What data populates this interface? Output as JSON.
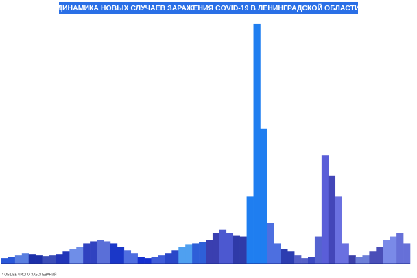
{
  "chart_data": {
    "type": "bar",
    "title": "ДИНАМИКА НОВЫХ СЛУЧАЕВ ЗАРАЖЕНИЯ COVID-19 В ЛЕНИНГРАДСКОЙ ОБЛАСТИ",
    "footnote": "* ОБЩЕЕ ЧИСЛО ЗАБОЛЕВАНИЙ",
    "ylim": [
      0,
      360
    ],
    "values": [
      8,
      10,
      12,
      15,
      14,
      12,
      11,
      12,
      14,
      18,
      22,
      25,
      30,
      33,
      35,
      33,
      30,
      25,
      20,
      15,
      10,
      8,
      10,
      12,
      15,
      20,
      25,
      28,
      30,
      32,
      35,
      45,
      50,
      45,
      42,
      40,
      100,
      355,
      200,
      60,
      30,
      22,
      18,
      12,
      8,
      10,
      40,
      160,
      130,
      100,
      30,
      12,
      10,
      12,
      18,
      25,
      35,
      40,
      45,
      30
    ],
    "colors": [
      "#2a57d8",
      "#2a57d8",
      "#5a7fe0",
      "#5a7fe0",
      "#1c2fa8",
      "#1c2fa8",
      "#3b4db8",
      "#3b4db8",
      "#2235b8",
      "#2235b8",
      "#6f8ee8",
      "#6f8ee8",
      "#3042c0",
      "#3042c0",
      "#5a6fd8",
      "#5a6fd8",
      "#1a37c8",
      "#1a37c8",
      "#4f6ee0",
      "#4f6ee0",
      "#1530d0",
      "#1530d0",
      "#3f5cd8",
      "#3f5cd8",
      "#2a47c8",
      "#2a47c8",
      "#4fa0f0",
      "#4fa0f0",
      "#2e5fd8",
      "#2e5fd8",
      "#3a3fb0",
      "#3a3fb0",
      "#4c58d0",
      "#4c58d0",
      "#2f3aa8",
      "#2f3aa8",
      "#1f7ef0",
      "#1f7ef0",
      "#1f7ef0",
      "#4d6fe0",
      "#4d6fe0",
      "#2c3db0",
      "#2c3db0",
      "#5560c8",
      "#5560c8",
      "#3a48c0",
      "#5563d0",
      "#5a5ed8",
      "#4346b8",
      "#6a70e0",
      "#6a70e0",
      "#3b3fa8",
      "#6d7fd8",
      "#6d7fd8",
      "#4a4fb8",
      "#4a4fb8",
      "#7a8ae8",
      "#7a8ae8",
      "#6670d8",
      "#6670d8"
    ]
  }
}
